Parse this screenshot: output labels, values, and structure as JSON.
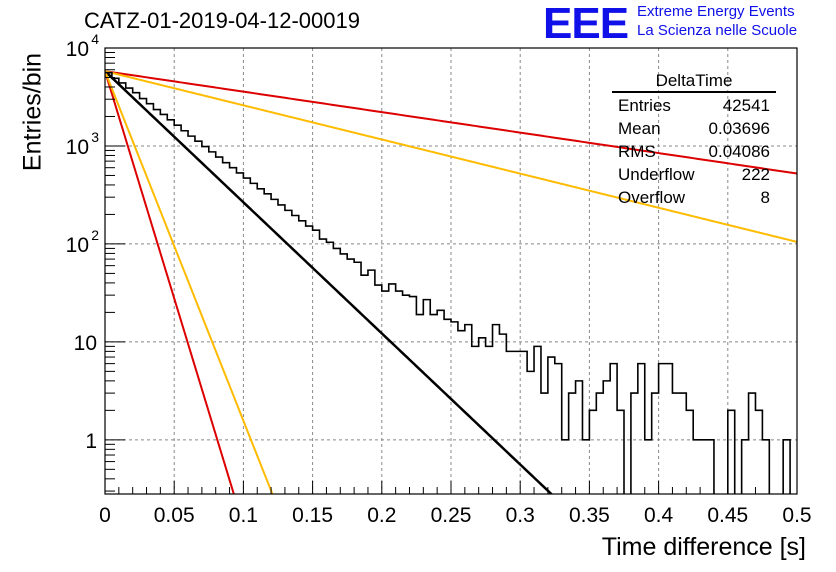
{
  "header": {
    "run_title": "CATZ-01-2019-04-12-00019",
    "logo_text": "EEE",
    "logo_line1": "Extreme Energy Events",
    "logo_line2": "La Scienza nelle Scuole"
  },
  "stats_box": {
    "title": "DeltaTime",
    "rows": [
      {
        "label": "Entries",
        "value": "42541"
      },
      {
        "label": "Mean",
        "value": "0.03696"
      },
      {
        "label": "RMS",
        "value": "0.04086"
      },
      {
        "label": "Underflow",
        "value": "222"
      },
      {
        "label": "Overflow",
        "value": "8"
      }
    ]
  },
  "chart_data": {
    "type": "line",
    "title": "CATZ-01-2019-04-12-00019",
    "xlabel": "Time difference [s]",
    "ylabel": "Entries/bin",
    "xlim": [
      0,
      0.5
    ],
    "ylim": [
      0.28,
      10000
    ],
    "y_scale": "log",
    "grid": true,
    "x_ticks": [
      "0",
      "0.05",
      "0.1",
      "0.15",
      "0.2",
      "0.25",
      "0.3",
      "0.35",
      "0.4",
      "0.45",
      "0.5"
    ],
    "x_tick_values": [
      0,
      0.05,
      0.1,
      0.15,
      0.2,
      0.25,
      0.3,
      0.35,
      0.4,
      0.45,
      0.5
    ],
    "y_ticks": [
      {
        "value": 1,
        "label": "1"
      },
      {
        "value": 10,
        "label": "10"
      },
      {
        "value": 100,
        "label": "10",
        "exp": "2"
      },
      {
        "value": 1000,
        "label": "10",
        "exp": "3"
      },
      {
        "value": 10000,
        "label": "10",
        "exp": "4"
      }
    ],
    "histogram": {
      "name": "DeltaTime",
      "bin_width": 0.005,
      "bin_start": 0,
      "color": "#000000",
      "counts": [
        5600,
        4900,
        4400,
        3900,
        3500,
        3050,
        2700,
        2350,
        2100,
        1850,
        1630,
        1430,
        1260,
        1120,
        985,
        870,
        770,
        675,
        600,
        530,
        470,
        415,
        365,
        325,
        285,
        250,
        220,
        195,
        172,
        152,
        138,
        112,
        104,
        90,
        79,
        70,
        65,
        48,
        54,
        38,
        33,
        39,
        33,
        30,
        29,
        19,
        27,
        19,
        21,
        17,
        16,
        13,
        15,
        9,
        11,
        9,
        15,
        12,
        8,
        8,
        8,
        5,
        9,
        3,
        7,
        6,
        1,
        3,
        4,
        1,
        2,
        3,
        4,
        6,
        2,
        0,
        3,
        6,
        1,
        3,
        6,
        6,
        3,
        3,
        2,
        1,
        1,
        1,
        0,
        0,
        2,
        0,
        1,
        3,
        2,
        1,
        0,
        0,
        1,
        0
      ]
    },
    "series": [
      {
        "color": "#000000",
        "A": 5800,
        "tau": 0.03245,
        "width": 2.5
      },
      {
        "color": "#dd0000",
        "A": 5800,
        "tau": 0.009365,
        "width": 2
      },
      {
        "color": "#ffbb00",
        "A": 5800,
        "tau": 0.01217,
        "width": 2
      },
      {
        "color": "#dd0000",
        "A": 5800,
        "tau": 0.2078,
        "width": 2
      },
      {
        "color": "#ffbb00",
        "A": 5800,
        "tau": 0.1246,
        "width": 2
      }
    ]
  }
}
